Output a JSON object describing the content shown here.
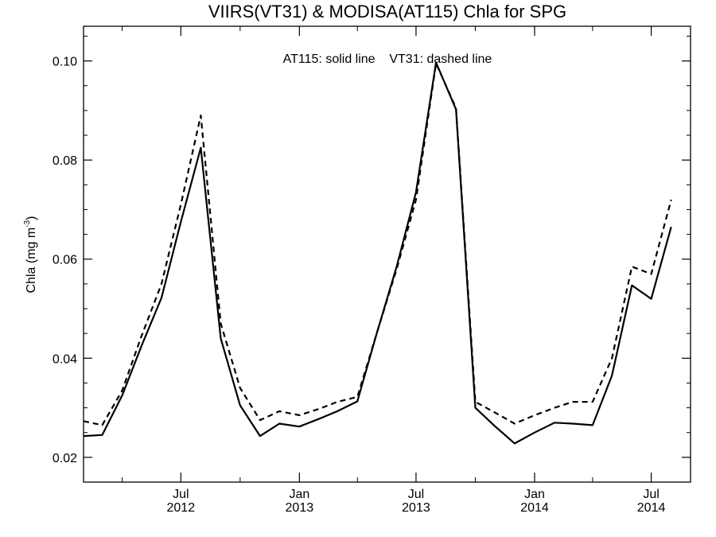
{
  "chart_data": {
    "type": "line",
    "title": "VIIRS(VT31) & MODISA(AT115)  Chla for SPG",
    "annotation": "AT115: solid line    VT31: dashed line",
    "ylabel": "Chla (mg m",
    "ylabel_sup": "-3",
    "ylabel_end": ")",
    "xlabel": "",
    "ylim": [
      0.015,
      0.107
    ],
    "yticks": [
      0.02,
      0.04,
      0.06,
      0.08,
      0.1
    ],
    "ytick_labels": [
      "0.02",
      "0.04",
      "0.06",
      "0.08",
      "0.10"
    ],
    "xlim": [
      "2012-02-01",
      "2014-08-31"
    ],
    "xticks": [
      {
        "date": "2012-07-01",
        "month": "Jul",
        "year": "2012"
      },
      {
        "date": "2013-01-01",
        "month": "Jan",
        "year": "2013"
      },
      {
        "date": "2013-07-01",
        "month": "Jul",
        "year": "2013"
      },
      {
        "date": "2014-01-01",
        "month": "Jan",
        "year": "2014"
      },
      {
        "date": "2014-07-01",
        "month": "Jul",
        "year": "2014"
      }
    ],
    "series": [
      {
        "name": "AT115",
        "style": "solid",
        "points": [
          [
            "2012-02-01",
            0.0243
          ],
          [
            "2012-03-01",
            0.0245
          ],
          [
            "2012-04-01",
            0.0325
          ],
          [
            "2012-05-01",
            0.0425
          ],
          [
            "2012-06-01",
            0.0522
          ],
          [
            "2012-07-01",
            0.0675
          ],
          [
            "2012-08-01",
            0.0825
          ],
          [
            "2012-09-01",
            0.044
          ],
          [
            "2012-10-01",
            0.0305
          ],
          [
            "2012-11-01",
            0.0243
          ],
          [
            "2012-12-01",
            0.0268
          ],
          [
            "2013-01-01",
            0.0262
          ],
          [
            "2013-02-01",
            0.0278
          ],
          [
            "2013-03-01",
            0.0293
          ],
          [
            "2013-04-01",
            0.0313
          ],
          [
            "2013-05-01",
            0.045
          ],
          [
            "2013-06-01",
            0.0585
          ],
          [
            "2013-07-01",
            0.0735
          ],
          [
            "2013-08-01",
            0.0997
          ],
          [
            "2013-09-01",
            0.0902
          ],
          [
            "2013-10-01",
            0.03
          ],
          [
            "2013-11-01",
            0.0262
          ],
          [
            "2013-12-01",
            0.0228
          ],
          [
            "2014-01-01",
            0.025
          ],
          [
            "2014-02-01",
            0.027
          ],
          [
            "2014-03-01",
            0.0268
          ],
          [
            "2014-04-01",
            0.0265
          ],
          [
            "2014-05-01",
            0.0365
          ],
          [
            "2014-06-01",
            0.0547
          ],
          [
            "2014-07-01",
            0.052
          ],
          [
            "2014-08-01",
            0.0665
          ]
        ]
      },
      {
        "name": "VT31",
        "style": "dashed",
        "points": [
          [
            "2012-02-01",
            0.0273
          ],
          [
            "2012-03-01",
            0.0265
          ],
          [
            "2012-04-01",
            0.0335
          ],
          [
            "2012-05-01",
            0.0445
          ],
          [
            "2012-06-01",
            0.055
          ],
          [
            "2012-07-01",
            0.071
          ],
          [
            "2012-08-01",
            0.089
          ],
          [
            "2012-09-01",
            0.047
          ],
          [
            "2012-10-01",
            0.034
          ],
          [
            "2012-11-01",
            0.0275
          ],
          [
            "2012-12-01",
            0.0293
          ],
          [
            "2013-01-01",
            0.0285
          ],
          [
            "2013-02-01",
            0.0298
          ],
          [
            "2013-03-01",
            0.0312
          ],
          [
            "2013-04-01",
            0.0322
          ],
          [
            "2013-05-01",
            0.045
          ],
          [
            "2013-06-01",
            0.058
          ],
          [
            "2013-07-01",
            0.072
          ],
          [
            "2013-08-01",
            0.0995
          ],
          [
            "2013-09-01",
            0.0905
          ],
          [
            "2013-10-01",
            0.0312
          ],
          [
            "2013-11-01",
            0.029
          ],
          [
            "2013-12-01",
            0.0268
          ],
          [
            "2014-01-01",
            0.0285
          ],
          [
            "2014-02-01",
            0.03
          ],
          [
            "2014-03-01",
            0.0312
          ],
          [
            "2014-04-01",
            0.0312
          ],
          [
            "2014-05-01",
            0.04
          ],
          [
            "2014-06-01",
            0.0585
          ],
          [
            "2014-07-01",
            0.057
          ],
          [
            "2014-08-01",
            0.072
          ]
        ]
      }
    ],
    "grid": false,
    "legend": "none"
  }
}
